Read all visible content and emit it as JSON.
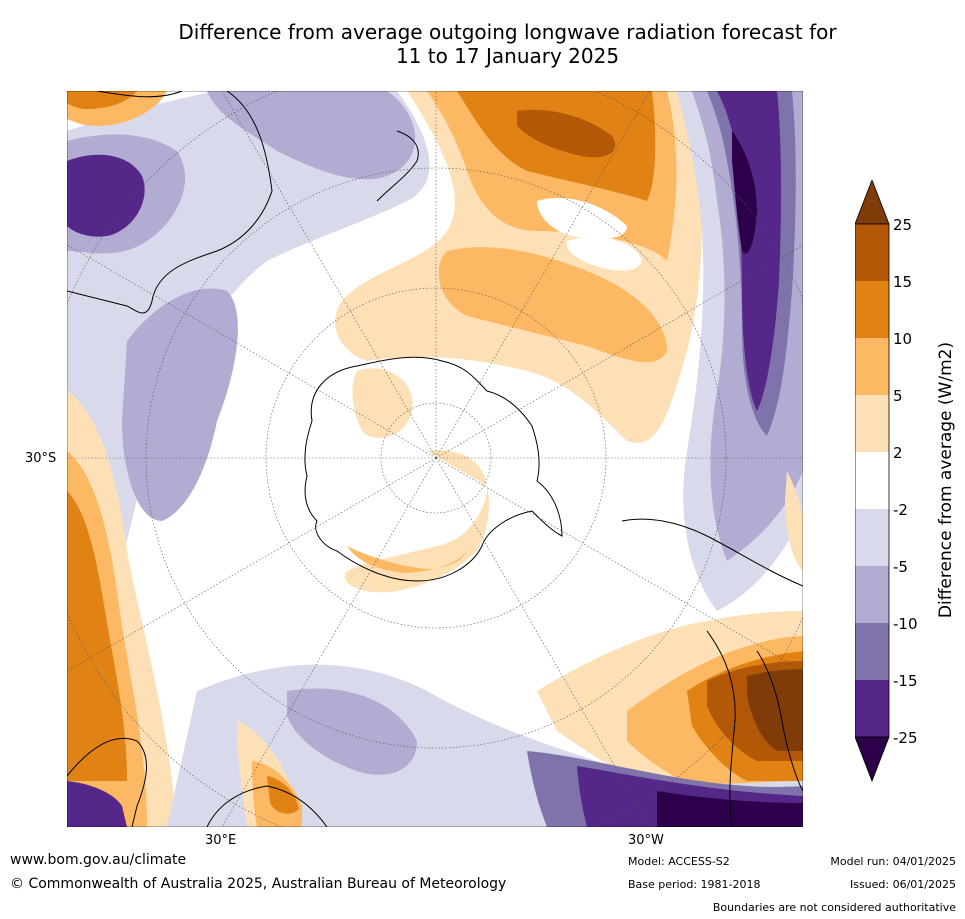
{
  "title_line1": "Difference from average outgoing longwave radiation forecast for",
  "title_line2": "11 to 17 January 2025",
  "lat_label": "30°S",
  "lon_labels": {
    "east": "30°E",
    "west": "30°W"
  },
  "colorbar": {
    "label": "Difference from average (W/m2)",
    "ticks": [
      "25",
      "15",
      "10",
      "5",
      "2",
      "-2",
      "-5",
      "-10",
      "-15",
      "-25"
    ],
    "colors": {
      "over": "#7f3b08",
      "b15_25": "#b35806",
      "b10_15": "#e08214",
      "b5_10": "#fdb863",
      "b2_5": "#fee0b6",
      "neutral": "#ffffff",
      "n2_5": "#d8daeb",
      "n5_10": "#b2abd2",
      "n10_15": "#8073ac",
      "n15_25": "#542788",
      "under": "#2d004b"
    }
  },
  "footer": {
    "website": "www.bom.gov.au/climate",
    "copyright": "© Commonwealth of Australia 2025, Australian Bureau of Meteorology",
    "model": "Model: ACCESS-S2",
    "base_period": "Base period: 1981-2018",
    "model_run": "Model run: 04/01/2025",
    "issued": "Issued: 06/01/2025",
    "disclaimer": "Boundaries are not considered authoritative"
  }
}
